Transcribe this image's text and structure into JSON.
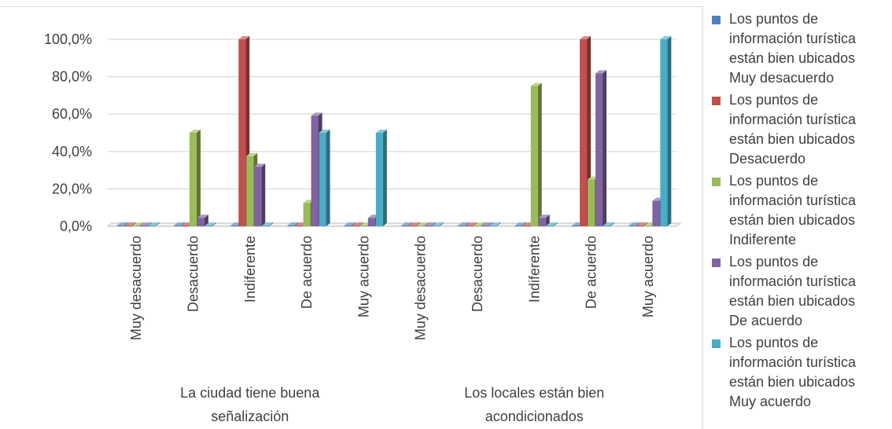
{
  "chart_data": {
    "type": "bar",
    "title": "",
    "xlabel": "",
    "ylabel": "",
    "ylim": [
      0,
      100
    ],
    "yticks": [
      "0,0%",
      "20,0%",
      "40,0%",
      "60,0%",
      "80,0%",
      "100,0%"
    ],
    "grid": true,
    "style": "3d-clustered-column",
    "legend_position": "right",
    "groups": [
      {
        "label": "La ciudad tiene buena\nseñalización",
        "categories": [
          "Muy desacuerdo",
          "Desacuerdo",
          "Indiferente",
          "De acuerdo",
          "Muy acuerdo"
        ]
      },
      {
        "label": "Los locales están bien\nacondicionados",
        "categories": [
          "Muy desacuerdo",
          "Desacuerdo",
          "Indiferente",
          "De acuerdo",
          "Muy acuerdo"
        ]
      }
    ],
    "series": [
      {
        "name": "Los puntos de\ninformación turística\nestán bien ubicados\nMuy desacuerdo",
        "color": "#4f81bd",
        "values": [
          0,
          0,
          0,
          0,
          0,
          0,
          0,
          0,
          0,
          0
        ]
      },
      {
        "name": "Los puntos de\ninformación turística\nestán bien ubicados\nDesacuerdo",
        "color": "#c0504d",
        "values": [
          0,
          0,
          100,
          0,
          0,
          0,
          0,
          0,
          100,
          0
        ]
      },
      {
        "name": "Los puntos de\ninformación turística\nestán bien ubicados\nIndiferente",
        "color": "#9bbb59",
        "values": [
          0,
          50,
          37.5,
          12.5,
          0,
          0,
          0,
          75,
          25,
          0
        ]
      },
      {
        "name": "Los puntos de\ninformación turística\nestán bien ubicados\nDe acuerdo",
        "color": "#8064a2",
        "values": [
          0,
          4.5,
          31.8,
          59.1,
          4.5,
          0,
          0,
          4.5,
          81.8,
          13.6
        ]
      },
      {
        "name": "Los puntos de\ninformación turística\nestán bien ubicados\nMuy acuerdo",
        "color": "#4bacc6",
        "values": [
          0,
          0,
          0,
          50,
          50,
          0,
          0,
          0,
          0,
          100
        ]
      }
    ]
  }
}
